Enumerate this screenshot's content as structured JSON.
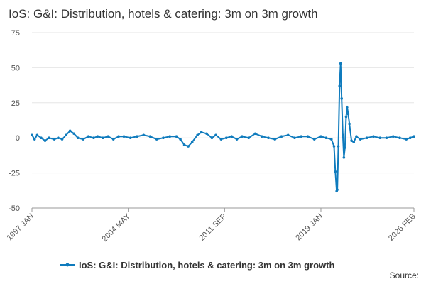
{
  "chart_data": {
    "type": "line",
    "title": "IoS: G&I: Distribution, hotels & catering: 3m on 3m growth",
    "source": "Source:",
    "series": [
      {
        "name": "IoS: G&I: Distribution, hotels & catering: 3m on 3m growth",
        "color": "#0f7bbd",
        "x": [
          1997.0,
          1997.2,
          1997.4,
          1997.7,
          1998.0,
          1998.3,
          1998.7,
          1999.0,
          1999.3,
          1999.6,
          1999.9,
          2000.2,
          2000.5,
          2000.9,
          2001.3,
          2001.7,
          2002.0,
          2002.4,
          2002.8,
          2003.2,
          2003.6,
          2004.0,
          2004.5,
          2005.0,
          2005.5,
          2006.0,
          2006.5,
          2007.0,
          2007.5,
          2008.0,
          2008.3,
          2008.6,
          2008.9,
          2009.2,
          2009.6,
          2009.9,
          2010.3,
          2010.7,
          2011.0,
          2011.4,
          2011.8,
          2012.2,
          2012.6,
          2013.0,
          2013.5,
          2014.0,
          2014.5,
          2015.0,
          2015.5,
          2016.0,
          2016.5,
          2017.0,
          2017.5,
          2018.0,
          2018.5,
          2019.0,
          2019.4,
          2019.8,
          2020.0,
          2020.1,
          2020.2,
          2020.25,
          2020.33,
          2020.42,
          2020.5,
          2020.58,
          2020.67,
          2020.75,
          2020.83,
          2020.92,
          2021.0,
          2021.08,
          2021.17,
          2021.33,
          2021.5,
          2021.7,
          2022.0,
          2022.5,
          2023.0,
          2023.5,
          2024.0,
          2024.5,
          2025.0,
          2025.5,
          2025.8,
          2026.083
        ],
        "values": [
          2,
          -1,
          2,
          0,
          -2,
          0,
          -1,
          0,
          -1,
          2,
          5,
          3,
          0,
          -1,
          1,
          0,
          1,
          0,
          1,
          -1,
          1,
          1,
          0,
          1,
          2,
          1,
          -1,
          0,
          1,
          1,
          -1,
          -5,
          -6,
          -3,
          2,
          4,
          3,
          0,
          2,
          -1,
          0,
          1,
          -1,
          1,
          0,
          3,
          1,
          0,
          -1,
          1,
          2,
          0,
          1,
          1,
          -1,
          1,
          0,
          -1,
          -6,
          -24,
          -38,
          -37,
          -6,
          37,
          53,
          28,
          2,
          -14,
          -7,
          15,
          22,
          17,
          10,
          -2,
          -3,
          1,
          -1,
          0,
          1,
          0,
          0,
          1,
          0,
          -1,
          0,
          1
        ]
      }
    ],
    "xlim": [
      1997.0,
      2026.083
    ],
    "xticks": [
      {
        "value": 1997.0,
        "label": "1997 JAN"
      },
      {
        "value": 2004.333,
        "label": "2004 MAY"
      },
      {
        "value": 2011.667,
        "label": "2011 SEP"
      },
      {
        "value": 2019.0,
        "label": "2019 JAN"
      },
      {
        "value": 2026.083,
        "label": "2026 FEB"
      }
    ],
    "ylim": [
      -50,
      75
    ],
    "yticks": [
      -50,
      -25,
      0,
      25,
      50,
      75
    ],
    "grid": true
  }
}
